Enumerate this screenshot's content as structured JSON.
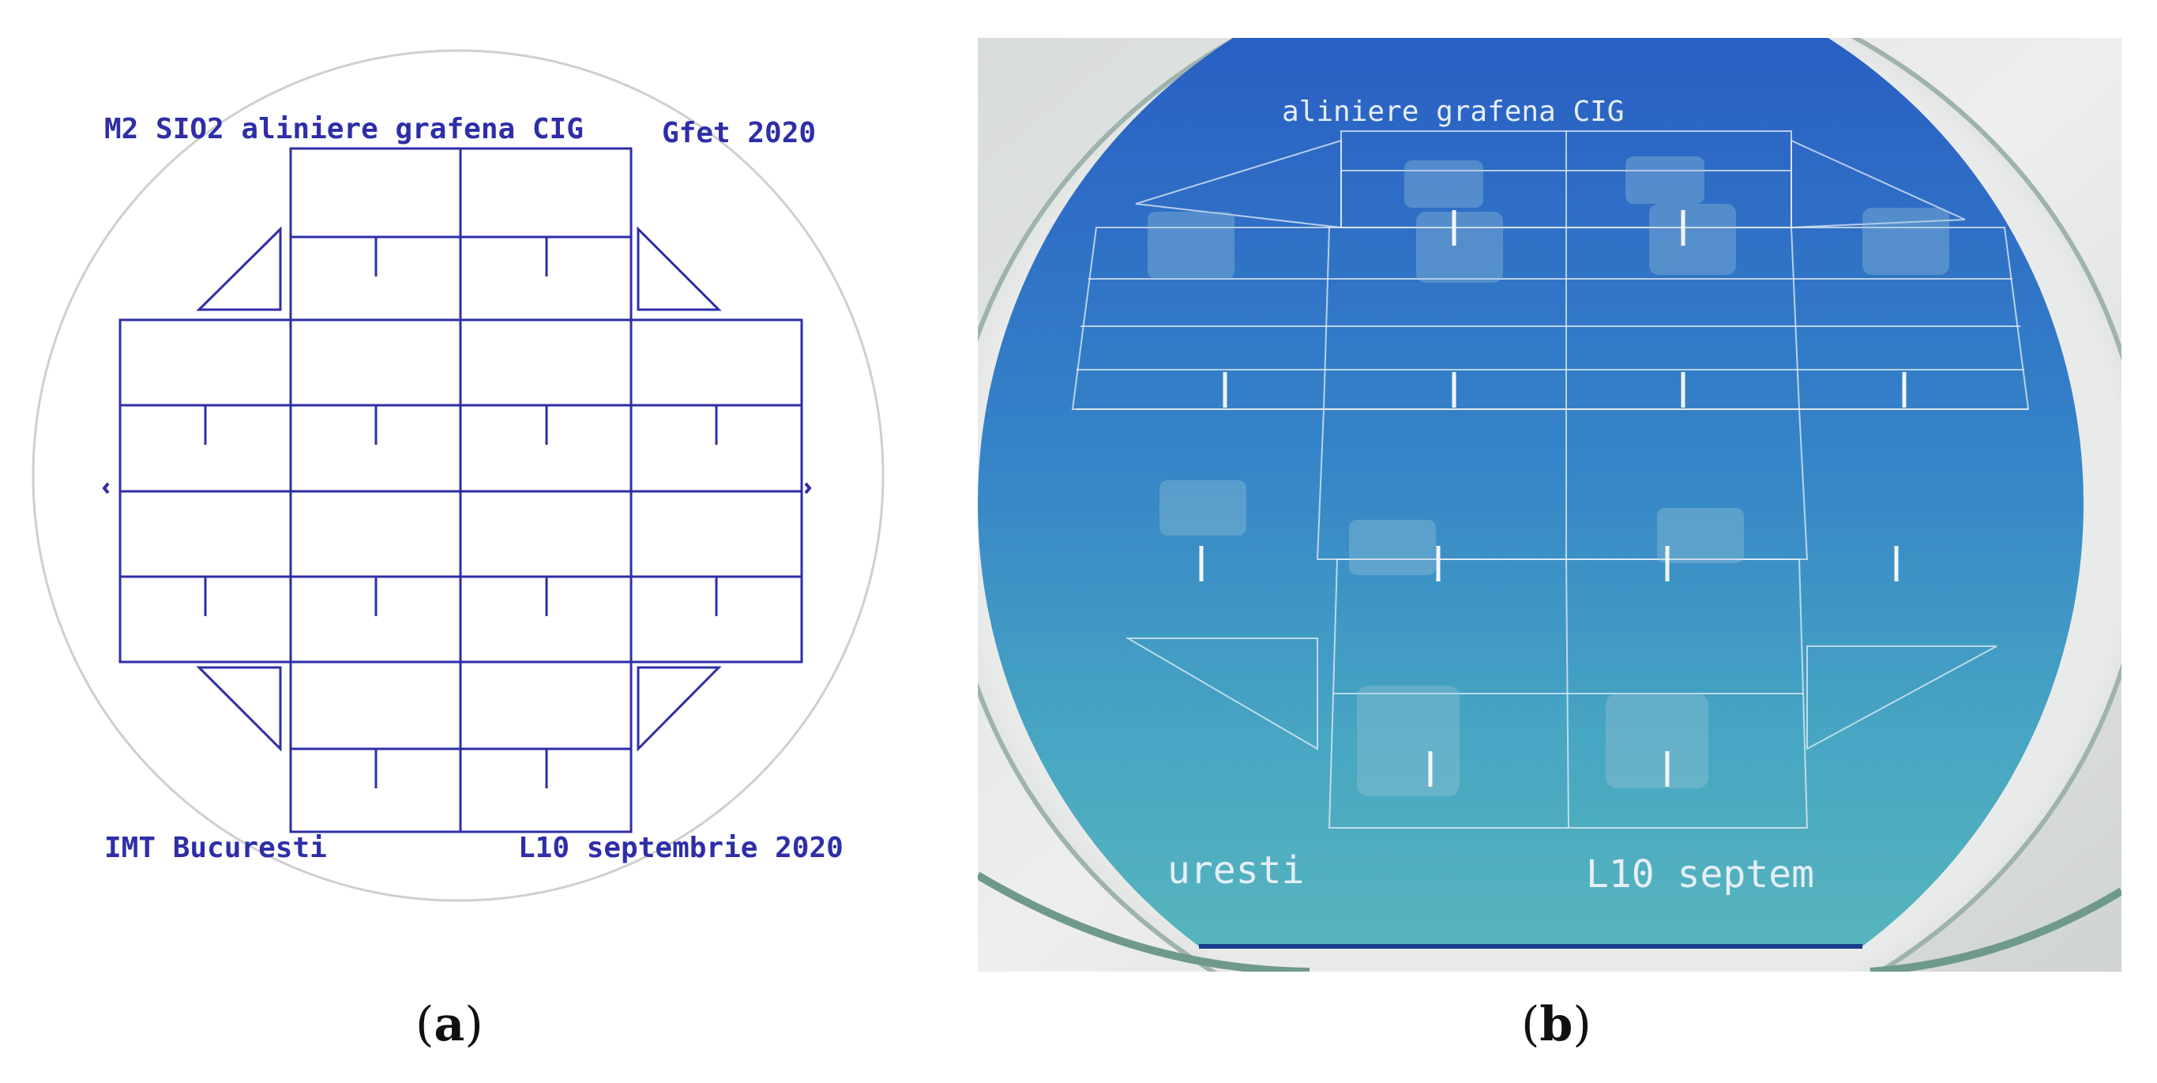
{
  "panel_a": {
    "label_top_left": "M2 SIO2 aliniere grafena CIG",
    "label_top_right": "Gfet 2020",
    "label_bottom_left": "IMT Bucuresti",
    "label_bottom_right": "L10 septembrie 2020",
    "line_color": "#2e2ea8"
  },
  "panel_b": {
    "label_top": "aliniere grafena CIG",
    "label_bottom_left": "uresti",
    "label_bottom_right": "L10 septem"
  },
  "captions": {
    "a_open": "(",
    "a_letter": "a",
    "a_close": ")",
    "b_open": "(",
    "b_letter": "b",
    "b_close": ")"
  }
}
